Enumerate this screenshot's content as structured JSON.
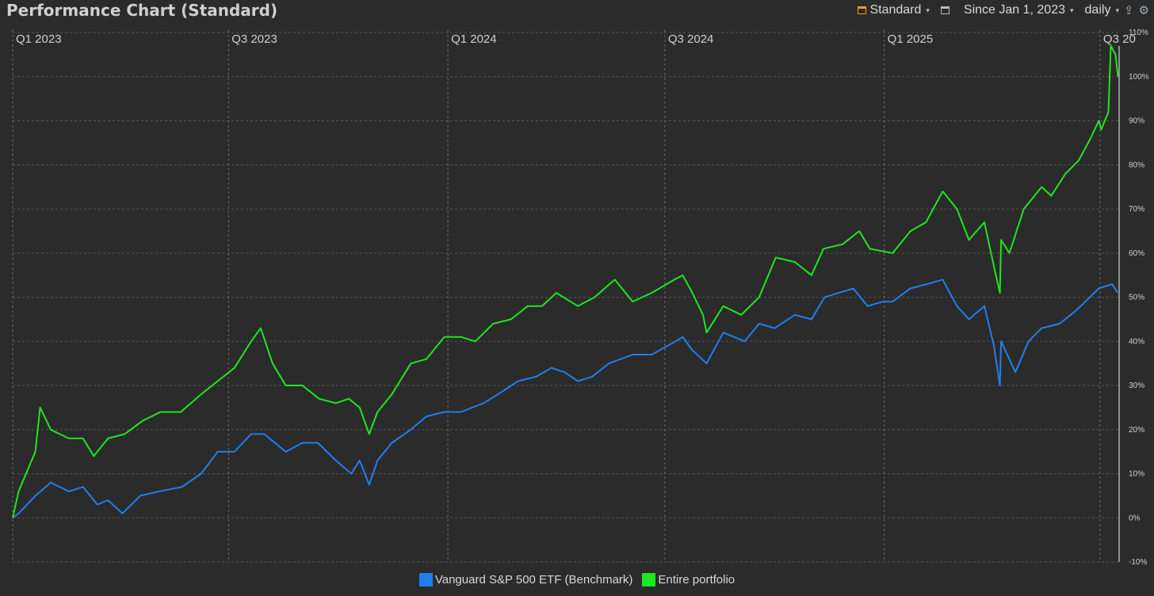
{
  "header": {
    "title": "Performance Chart (Standard)",
    "view_label": "Standard",
    "period_label": "Since Jan 1, 2023",
    "interval_label": "daily"
  },
  "icons": {
    "view": "chart-view-icon",
    "window": "window-icon",
    "export": "export-icon",
    "settings": "gear-icon"
  },
  "colors": {
    "background": "#2b2b2b",
    "benchmark": "#1f7ff0",
    "portfolio": "#1ee61e"
  },
  "chart_data": {
    "type": "line",
    "x_axis": {
      "tick_labels": [
        "Q1 2023",
        "Q3 2023",
        "Q1 2024",
        "Q3 2024",
        "Q1 2025",
        "Q3 20"
      ],
      "tick_dates": [
        "2023-01-01",
        "2023-07-01",
        "2024-01-01",
        "2024-07-01",
        "2025-01-01",
        "2025-07-01"
      ],
      "range": [
        "2023-01-01",
        "2025-07-17"
      ]
    },
    "y_axis": {
      "unit": "%",
      "ylim": [
        -10,
        112
      ],
      "ticks": [
        -10,
        0,
        10,
        20,
        30,
        40,
        50,
        60,
        70,
        80,
        90,
        100,
        110
      ],
      "tick_labels": [
        "-10%",
        "0%",
        "10%",
        "20%",
        "30%",
        "40%",
        "50%",
        "60%",
        "70%",
        "80%",
        "90%",
        "100%",
        "110%"
      ]
    },
    "grid": true,
    "legend_position": "bottom-center",
    "series": [
      {
        "name": "Vanguard S&P 500 ETF (Benchmark)",
        "color": "#1f7ff0",
        "points": [
          [
            "2023-01-01",
            0
          ],
          [
            "2023-01-06",
            1
          ],
          [
            "2023-01-20",
            5
          ],
          [
            "2023-02-02",
            8
          ],
          [
            "2023-02-17",
            6
          ],
          [
            "2023-03-01",
            7
          ],
          [
            "2023-03-13",
            3
          ],
          [
            "2023-03-22",
            4
          ],
          [
            "2023-04-03",
            1
          ],
          [
            "2023-04-18",
            5
          ],
          [
            "2023-05-04",
            6
          ],
          [
            "2023-05-23",
            7
          ],
          [
            "2023-06-08",
            10
          ],
          [
            "2023-06-22",
            15
          ],
          [
            "2023-07-06",
            15
          ],
          [
            "2023-07-20",
            19
          ],
          [
            "2023-07-31",
            19
          ],
          [
            "2023-08-18",
            15
          ],
          [
            "2023-09-01",
            17
          ],
          [
            "2023-09-14",
            17
          ],
          [
            "2023-09-29",
            13
          ],
          [
            "2023-10-12",
            10
          ],
          [
            "2023-10-19",
            13
          ],
          [
            "2023-10-27",
            7.5
          ],
          [
            "2023-11-03",
            13
          ],
          [
            "2023-11-15",
            17
          ],
          [
            "2023-12-01",
            20
          ],
          [
            "2023-12-14",
            23
          ],
          [
            "2023-12-29",
            24
          ],
          [
            "2024-01-12",
            24
          ],
          [
            "2024-01-31",
            26
          ],
          [
            "2024-02-12",
            28
          ],
          [
            "2024-02-29",
            31
          ],
          [
            "2024-03-15",
            32
          ],
          [
            "2024-03-28",
            34
          ],
          [
            "2024-04-08",
            33
          ],
          [
            "2024-04-19",
            31
          ],
          [
            "2024-05-01",
            32
          ],
          [
            "2024-05-15",
            35
          ],
          [
            "2024-06-04",
            37
          ],
          [
            "2024-06-20",
            37
          ],
          [
            "2024-07-10",
            40
          ],
          [
            "2024-07-16",
            41
          ],
          [
            "2024-07-24",
            38
          ],
          [
            "2024-08-05",
            35
          ],
          [
            "2024-08-19",
            42
          ],
          [
            "2024-09-06",
            40
          ],
          [
            "2024-09-18",
            44
          ],
          [
            "2024-10-01",
            43
          ],
          [
            "2024-10-18",
            46
          ],
          [
            "2024-11-01",
            45
          ],
          [
            "2024-11-12",
            50
          ],
          [
            "2024-12-06",
            52
          ],
          [
            "2024-12-18",
            48
          ],
          [
            "2024-12-31",
            49
          ],
          [
            "2025-01-08",
            49
          ],
          [
            "2025-01-23",
            52
          ],
          [
            "2025-02-06",
            53
          ],
          [
            "2025-02-19",
            54
          ],
          [
            "2025-03-03",
            48
          ],
          [
            "2025-03-13",
            45
          ],
          [
            "2025-03-26",
            48
          ],
          [
            "2025-04-03",
            39
          ],
          [
            "2025-04-08",
            30
          ],
          [
            "2025-04-09",
            40
          ],
          [
            "2025-04-21",
            33
          ],
          [
            "2025-05-02",
            40
          ],
          [
            "2025-05-13",
            43
          ],
          [
            "2025-05-28",
            44
          ],
          [
            "2025-06-11",
            47
          ],
          [
            "2025-06-30",
            52
          ],
          [
            "2025-07-11",
            53
          ],
          [
            "2025-07-16",
            51
          ]
        ]
      },
      {
        "name": "Entire portfolio",
        "color": "#1ee61e",
        "points": [
          [
            "2023-01-01",
            0
          ],
          [
            "2023-01-06",
            6
          ],
          [
            "2023-01-20",
            15
          ],
          [
            "2023-01-24",
            25
          ],
          [
            "2023-02-02",
            20
          ],
          [
            "2023-02-17",
            18
          ],
          [
            "2023-03-01",
            18
          ],
          [
            "2023-03-10",
            14
          ],
          [
            "2023-03-22",
            18
          ],
          [
            "2023-04-05",
            19
          ],
          [
            "2023-04-20",
            22
          ],
          [
            "2023-05-05",
            24
          ],
          [
            "2023-05-22",
            24
          ],
          [
            "2023-06-08",
            28
          ],
          [
            "2023-06-22",
            31
          ],
          [
            "2023-07-06",
            34
          ],
          [
            "2023-07-20",
            40
          ],
          [
            "2023-07-28",
            43
          ],
          [
            "2023-08-07",
            35
          ],
          [
            "2023-08-18",
            30
          ],
          [
            "2023-09-01",
            30
          ],
          [
            "2023-09-15",
            27
          ],
          [
            "2023-09-29",
            26
          ],
          [
            "2023-10-10",
            27
          ],
          [
            "2023-10-19",
            25
          ],
          [
            "2023-10-27",
            19
          ],
          [
            "2023-11-03",
            24
          ],
          [
            "2023-11-15",
            28
          ],
          [
            "2023-12-01",
            35
          ],
          [
            "2023-12-14",
            36
          ],
          [
            "2023-12-29",
            41
          ],
          [
            "2024-01-12",
            41
          ],
          [
            "2024-01-24",
            40
          ],
          [
            "2024-02-08",
            44
          ],
          [
            "2024-02-23",
            45
          ],
          [
            "2024-03-08",
            48
          ],
          [
            "2024-03-20",
            48
          ],
          [
            "2024-04-01",
            51
          ],
          [
            "2024-04-19",
            48
          ],
          [
            "2024-05-03",
            50
          ],
          [
            "2024-05-20",
            54
          ],
          [
            "2024-06-04",
            49
          ],
          [
            "2024-06-20",
            51
          ],
          [
            "2024-07-09",
            54
          ],
          [
            "2024-07-16",
            55
          ],
          [
            "2024-07-24",
            51
          ],
          [
            "2024-08-02",
            46
          ],
          [
            "2024-08-05",
            42
          ],
          [
            "2024-08-19",
            48
          ],
          [
            "2024-09-03",
            46
          ],
          [
            "2024-09-18",
            50
          ],
          [
            "2024-10-02",
            59
          ],
          [
            "2024-10-18",
            58
          ],
          [
            "2024-11-01",
            55
          ],
          [
            "2024-11-11",
            61
          ],
          [
            "2024-11-27",
            62
          ],
          [
            "2024-12-11",
            65
          ],
          [
            "2024-12-20",
            61
          ],
          [
            "2025-01-08",
            60
          ],
          [
            "2025-01-23",
            65
          ],
          [
            "2025-02-05",
            67
          ],
          [
            "2025-02-19",
            74
          ],
          [
            "2025-03-03",
            70
          ],
          [
            "2025-03-13",
            63
          ],
          [
            "2025-03-26",
            67
          ],
          [
            "2025-04-03",
            57
          ],
          [
            "2025-04-08",
            51
          ],
          [
            "2025-04-09",
            63
          ],
          [
            "2025-04-16",
            60
          ],
          [
            "2025-04-28",
            70
          ],
          [
            "2025-05-13",
            75
          ],
          [
            "2025-05-21",
            73
          ],
          [
            "2025-06-02",
            78
          ],
          [
            "2025-06-13",
            81
          ],
          [
            "2025-06-23",
            86
          ],
          [
            "2025-06-30",
            90
          ],
          [
            "2025-07-02",
            88
          ],
          [
            "2025-07-08",
            92
          ],
          [
            "2025-07-10",
            107
          ],
          [
            "2025-07-14",
            105
          ],
          [
            "2025-07-16",
            100
          ]
        ]
      }
    ]
  }
}
